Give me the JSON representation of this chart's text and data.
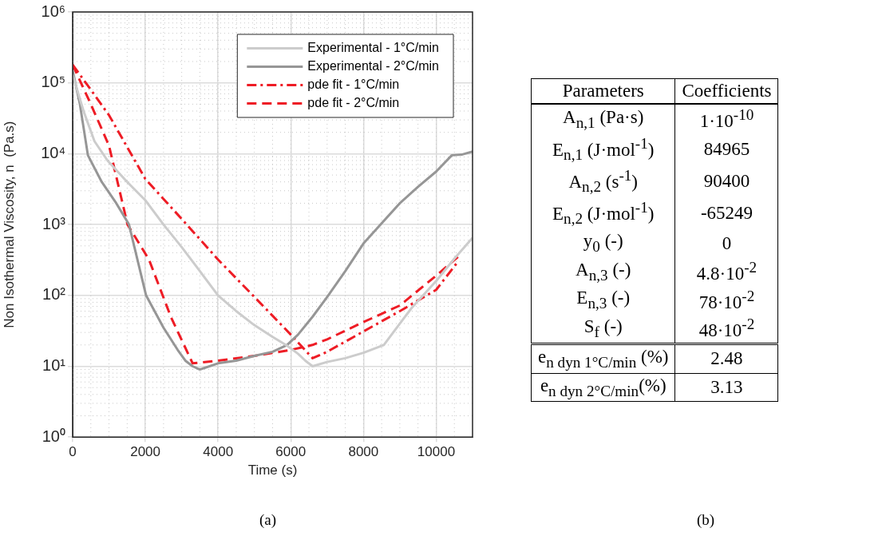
{
  "chart_data": [
    {
      "type": "line",
      "xlabel": "Time (s)",
      "ylabel": "Non Isothermal Viscosity, n  (Pa.s)",
      "log": "y",
      "grid": true,
      "legend": "top right",
      "marker": "none",
      "xlim": [
        0,
        11000
      ],
      "xticks": [
        0,
        2000,
        4000,
        6000,
        8000,
        10000
      ],
      "ylim": [
        1,
        1000000
      ],
      "yticks": [
        {
          "value": 1,
          "label": "10⁰"
        },
        {
          "value": 10,
          "label": "10¹"
        },
        {
          "value": 100,
          "label": "10²"
        },
        {
          "value": 1000,
          "label": "10³"
        },
        {
          "value": 10000,
          "label": "10⁴"
        },
        {
          "value": 100000,
          "label": "10⁵"
        },
        {
          "value": 1000000,
          "label": "10⁶"
        }
      ],
      "series": [
        {
          "name": "Experimental - 1°C/min",
          "color": "#cccccc",
          "line_style": "solid",
          "x": [
            0,
            300,
            600,
            960,
            1500,
            2000,
            2500,
            3000,
            3500,
            4000,
            4500,
            5000,
            5500,
            5900,
            6200,
            6400,
            6600,
            7000,
            7500,
            8000,
            8560,
            9000,
            9330,
            10000,
            10500,
            11000
          ],
          "values": [
            130000,
            40000,
            15000,
            8000,
            4000,
            2200,
            1000,
            480,
            220,
            100,
            60,
            38,
            26,
            19.5,
            15,
            12,
            10,
            11.5,
            13,
            15.5,
            20,
            40,
            67,
            160,
            330,
            650
          ]
        },
        {
          "name": "Experimental - 2°C/min",
          "color": "#969696",
          "line_style": "solid",
          "x": [
            0,
            200,
            420,
            800,
            1200,
            1550,
            2020,
            2500,
            2890,
            3100,
            3300,
            3500,
            4000,
            4500,
            5000,
            5500,
            5900,
            6200,
            6600,
            7000,
            7500,
            8000,
            8590,
            9000,
            9500,
            10000,
            10430,
            10700,
            11000
          ],
          "values": [
            150000,
            50000,
            9500,
            4000,
            2000,
            1000,
            100,
            35,
            17,
            12,
            10,
            9,
            11,
            12,
            14,
            16,
            20,
            28,
            50,
            95,
            220,
            540,
            1170,
            2000,
            3400,
            5600,
            9500,
            9700,
            10700
          ]
        },
        {
          "name": "pde fit - 1°C/min",
          "color": "#ee1c25",
          "line_style": "dashdot",
          "x": [
            0,
            500,
            1000,
            2000,
            3000,
            4000,
            5000,
            6000,
            6600,
            7000,
            8000,
            9000,
            10000,
            10600
          ],
          "values": [
            180000,
            80000,
            35000,
            4400,
            1200,
            320,
            95,
            28,
            13,
            16,
            31,
            60,
            120,
            300
          ]
        },
        {
          "name": "pde fit - 2°C/min",
          "color": "#ee1c25",
          "line_style": "dashed",
          "x": [
            0,
            500,
            1000,
            1510,
            2100,
            2700,
            3300,
            4000,
            5000,
            6000,
            6600,
            7000,
            8000,
            9000,
            10000,
            10600
          ],
          "values": [
            180000,
            50000,
            13000,
            1000,
            320,
            50,
            11,
            12,
            14,
            17,
            20,
            24,
            42,
            72,
            190,
            350
          ]
        }
      ],
      "annotations": [
        "(a)"
      ]
    },
    {
      "type": "other",
      "annotations": [
        "Parameters",
        "Coefficients",
        "A$_{n,1}$ (Pa·s)",
        "1·10$^{-10}$",
        "E$_{n,1}$ (J·mol$^{-1}$)",
        "84965",
        "A$_{n,2}$ (s$^{-1}$)",
        "90400",
        "E$_{n,2}$ (J·mol$^{-1}$)",
        "-65249",
        "y$_{0}$ (-)",
        "0",
        "A$_{n,3}$ (-)",
        "4.8·10$^{-2}$",
        "E$_{n,3}$ (-)",
        "78·10$^{-2}$",
        "S$_{f}$ (-)",
        "48·10$^{-2}$",
        "e$_{n dyn 1°C/min}$ (%)",
        "2.48",
        "e$_{n dyn 2°C/min}$(%)",
        "3.13",
        "(b)"
      ]
    }
  ]
}
